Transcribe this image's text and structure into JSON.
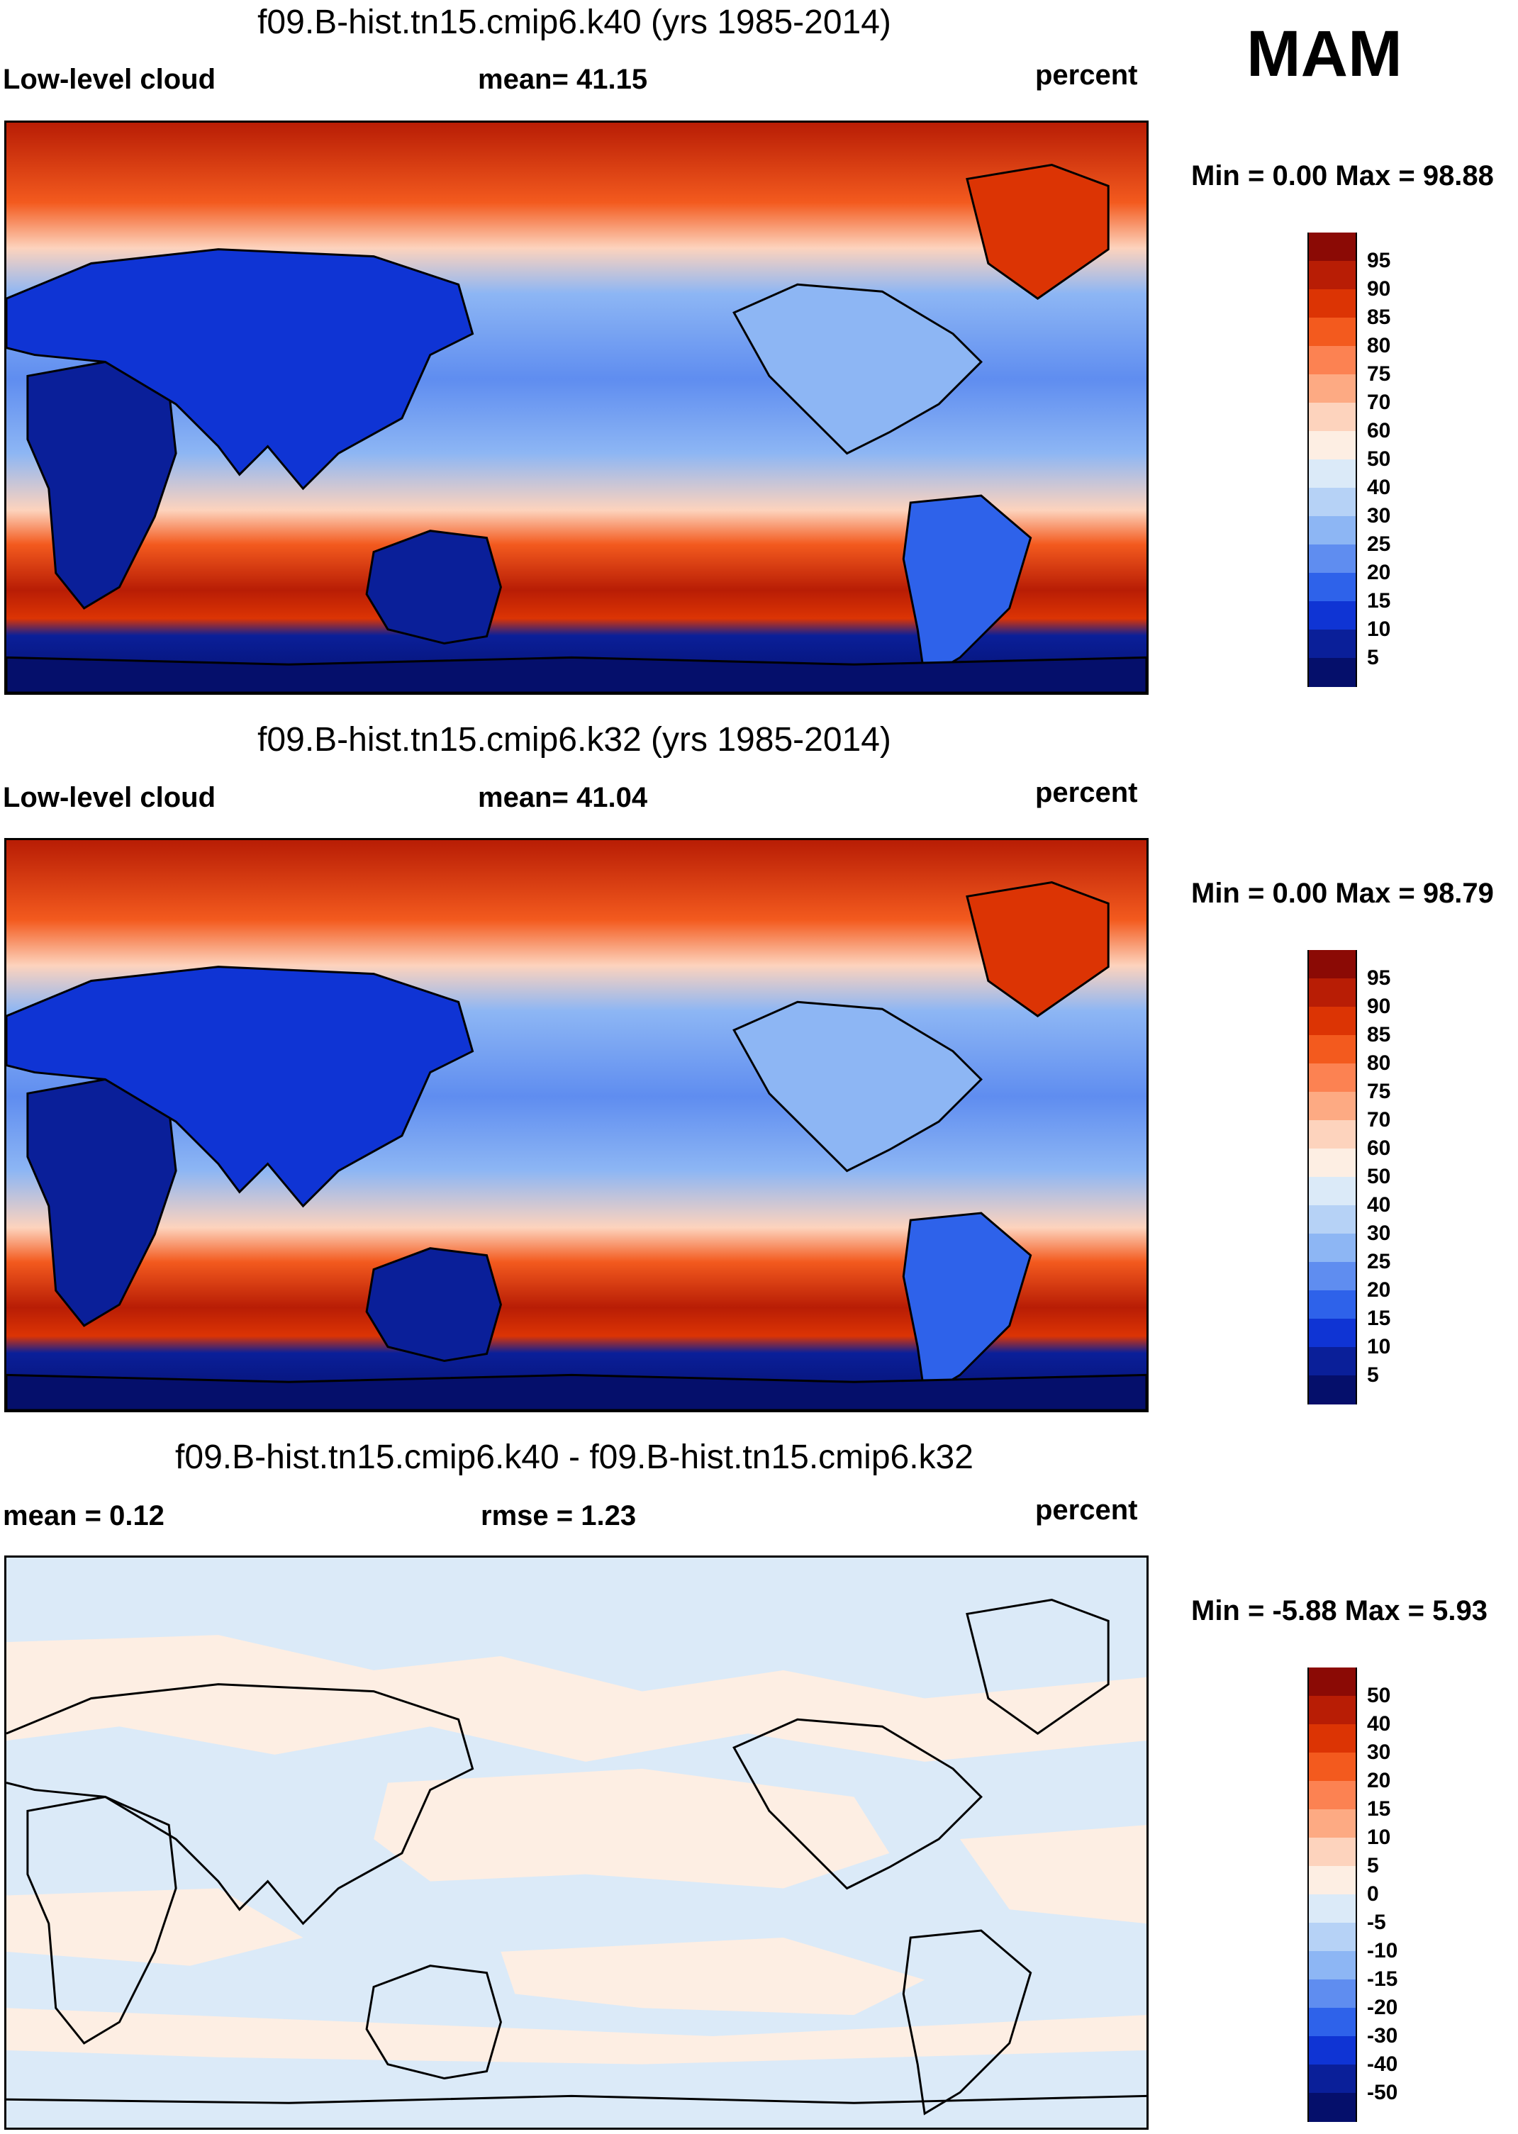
{
  "season": "MAM",
  "units": "percent",
  "variable": "Low-level cloud",
  "panels": [
    {
      "title": "f09.B-hist.tn15.cmip6.k40 (yrs 1985-2014)",
      "left_label": "Low-level cloud",
      "center_label": "mean=  41.15",
      "right_label": "percent",
      "minmax": "Min =   0.00 Max =  98.88",
      "colorbar_labels": [
        "95",
        "90",
        "85",
        "80",
        "75",
        "70",
        "60",
        "50",
        "40",
        "30",
        "25",
        "20",
        "15",
        "10",
        "5"
      ],
      "colorbar_colors": [
        "#8b0a05",
        "#b81d05",
        "#dc3404",
        "#f35a1e",
        "#fc8252",
        "#fdaa83",
        "#fdd3bd",
        "#fdeee3",
        "#dbeaf8",
        "#b6d2f6",
        "#8db6f4",
        "#5f8df0",
        "#2e62ea",
        "#0f34d4",
        "#0a1f99",
        "#050f6b"
      ]
    },
    {
      "title": "f09.B-hist.tn15.cmip6.k32 (yrs 1985-2014)",
      "left_label": "Low-level cloud",
      "center_label": "mean=  41.04",
      "right_label": "percent",
      "minmax": "Min =   0.00 Max =  98.79",
      "colorbar_labels": [
        "95",
        "90",
        "85",
        "80",
        "75",
        "70",
        "60",
        "50",
        "40",
        "30",
        "25",
        "20",
        "15",
        "10",
        "5"
      ],
      "colorbar_colors": [
        "#8b0a05",
        "#b81d05",
        "#dc3404",
        "#f35a1e",
        "#fc8252",
        "#fdaa83",
        "#fdd3bd",
        "#fdeee3",
        "#dbeaf8",
        "#b6d2f6",
        "#8db6f4",
        "#5f8df0",
        "#2e62ea",
        "#0f34d4",
        "#0a1f99",
        "#050f6b"
      ]
    },
    {
      "title": "f09.B-hist.tn15.cmip6.k40 - f09.B-hist.tn15.cmip6.k32",
      "left_label": "mean =   0.12",
      "center_label": "rmse =   1.23",
      "right_label": "percent",
      "minmax": "Min =  -5.88 Max =   5.93",
      "colorbar_labels": [
        "50",
        "40",
        "30",
        "20",
        "15",
        "10",
        "5",
        "0",
        "-5",
        "-10",
        "-15",
        "-20",
        "-30",
        "-40",
        "-50"
      ],
      "colorbar_colors": [
        "#8b0a05",
        "#b81d05",
        "#dc3404",
        "#f35a1e",
        "#fc8252",
        "#fdaa83",
        "#fdd3bd",
        "#fdeee3",
        "#dbeaf8",
        "#b6d2f6",
        "#8db6f4",
        "#5f8df0",
        "#2e62ea",
        "#0f34d4",
        "#0a1f99",
        "#050f6b"
      ]
    }
  ]
}
